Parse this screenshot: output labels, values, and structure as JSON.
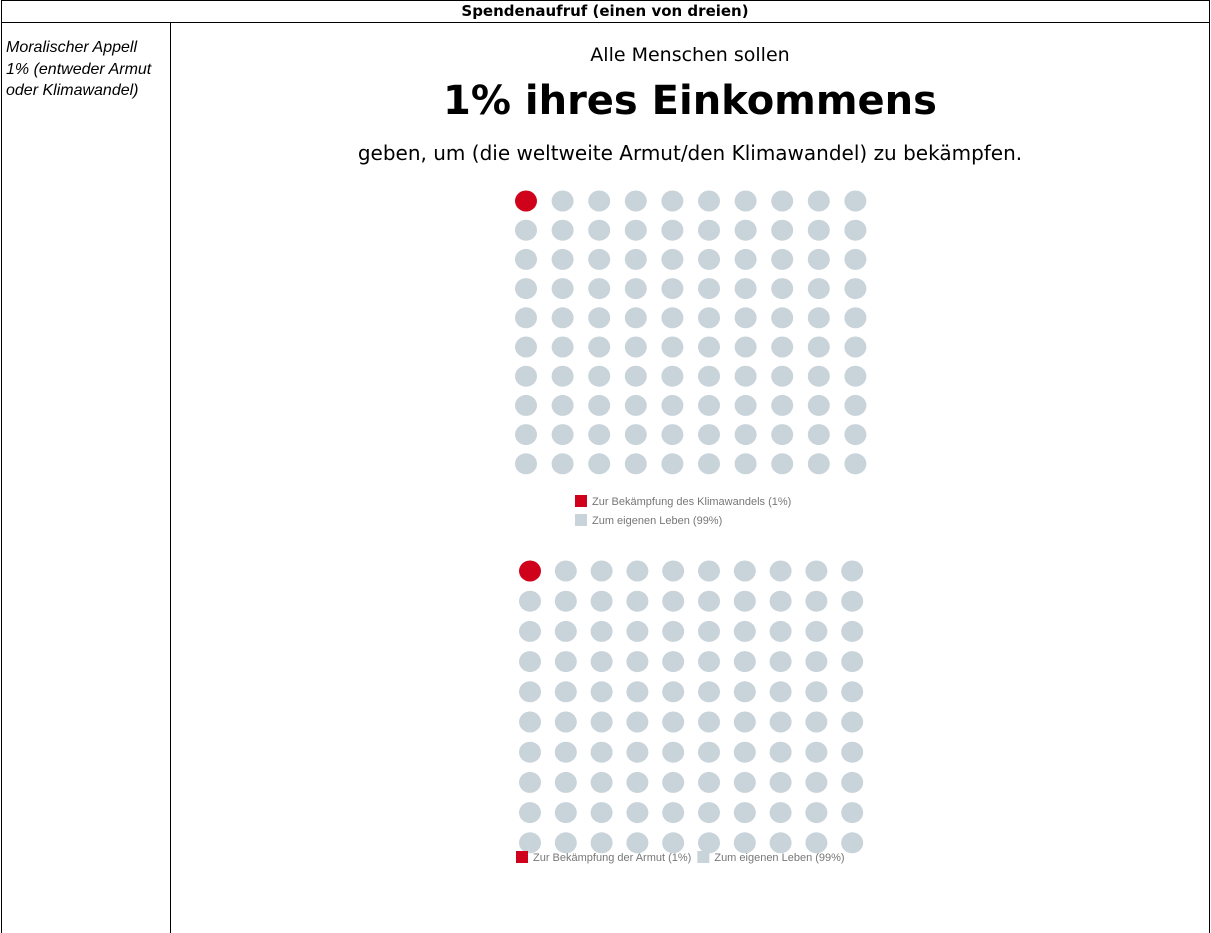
{
  "header": {
    "title": "Spendenaufruf (einen von dreien)"
  },
  "row": {
    "label": "Moralischer Appell 1% (entweder Armut oder Klimawandel)",
    "intro": "Alle Menschen sollen",
    "headline": "1% ihres Einkommens",
    "outro": "geben, um (die weltweite Armut/den Klimawandel) zu bekämpfen."
  },
  "charts": [
    {
      "type": "waffle",
      "legend": "vertical",
      "series": [
        {
          "name": "Zur Bekämpfung des Klimawandels (1%)",
          "color": "#d0021b",
          "value": 1
        },
        {
          "name": "Zum eigenen Leben (99%)",
          "color": "#c9d3da",
          "value": 99
        }
      ]
    },
    {
      "type": "waffle",
      "legend": "horizontal",
      "series": [
        {
          "name": "Zur Bekämpfung der Armut (1%)",
          "color": "#d0021b",
          "value": 1
        },
        {
          "name": "Zum eigenen Leben (99%)",
          "color": "#c9d3da",
          "value": 99
        }
      ]
    }
  ]
}
